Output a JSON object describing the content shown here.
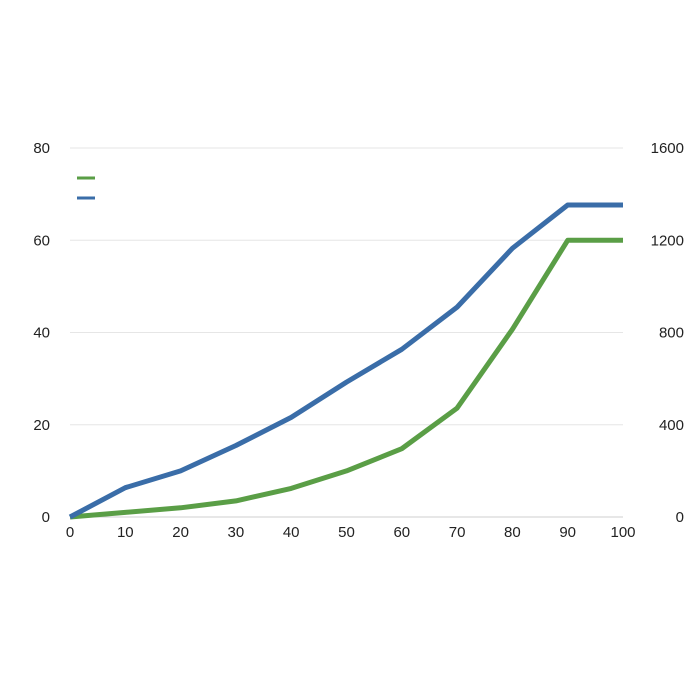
{
  "chart_data": {
    "type": "line",
    "title": "",
    "xlabel": "",
    "ylabel": "",
    "y2label": "",
    "x": [
      0,
      10,
      20,
      30,
      40,
      50,
      60,
      70,
      80,
      90,
      100
    ],
    "xlim": [
      0,
      100
    ],
    "ylim": [
      0,
      80
    ],
    "y2lim": [
      0,
      1600
    ],
    "x_ticks": [
      "0",
      "10",
      "20",
      "30",
      "40",
      "50",
      "60",
      "70",
      "80",
      "90",
      "100"
    ],
    "y_ticks": [
      "0",
      "20",
      "40",
      "60",
      "80"
    ],
    "y2_ticks": [
      "0",
      "400",
      "800",
      "1200",
      "1600"
    ],
    "grid": true,
    "legend": "top-left",
    "series": [
      {
        "axis": "left",
        "color": "#5a9e46",
        "values": [
          0,
          1,
          2,
          3.5,
          6.2,
          10,
          14.8,
          23.6,
          40.7,
          60,
          60
        ]
      },
      {
        "axis": "right",
        "color": "#3a6da8",
        "values": [
          0,
          127,
          200,
          310,
          432,
          585,
          727,
          910,
          1165,
          1353,
          1353
        ]
      }
    ]
  }
}
